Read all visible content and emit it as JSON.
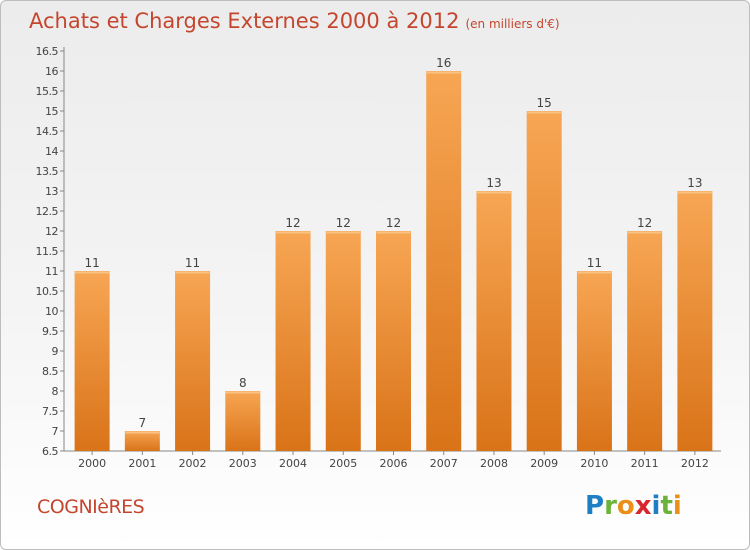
{
  "title": "Achats et Charges Externes 2000 à 2012",
  "unit": "(en milliers d'€)",
  "commune": "COGNIèRES",
  "logo": {
    "letters": [
      "P",
      "r",
      "o",
      "x",
      "i",
      "t",
      "i"
    ],
    "colors": [
      "#1e7fc5",
      "#6bb33a",
      "#e98f1a",
      "#d8262e",
      "#1e7fc5",
      "#6bb33a",
      "#e98f1a"
    ]
  },
  "colors": {
    "bar_top": "#f7a654",
    "bar_bottom": "#d97318",
    "title": "#c4462f",
    "axis": "#555555"
  },
  "chart_data": {
    "type": "bar",
    "title": "Achats et Charges Externes 2000 à 2012",
    "unit": "(en milliers d'€)",
    "categories": [
      "2000",
      "2001",
      "2002",
      "2003",
      "2004",
      "2005",
      "2006",
      "2007",
      "2008",
      "2009",
      "2010",
      "2011",
      "2012"
    ],
    "values": [
      11,
      7,
      11,
      8,
      12,
      12,
      12,
      16,
      13,
      15,
      11,
      12,
      13
    ],
    "ylim": [
      6.5,
      16.5
    ],
    "yticks": [
      "6.5",
      "7",
      "7.5",
      "8",
      "8.5",
      "9",
      "9.5",
      "10",
      "10.5",
      "11",
      "11.5",
      "12",
      "12.5",
      "13",
      "13.5",
      "14",
      "14.5",
      "15",
      "15.5",
      "16",
      "16.5"
    ],
    "grid": false,
    "legend": "none"
  }
}
